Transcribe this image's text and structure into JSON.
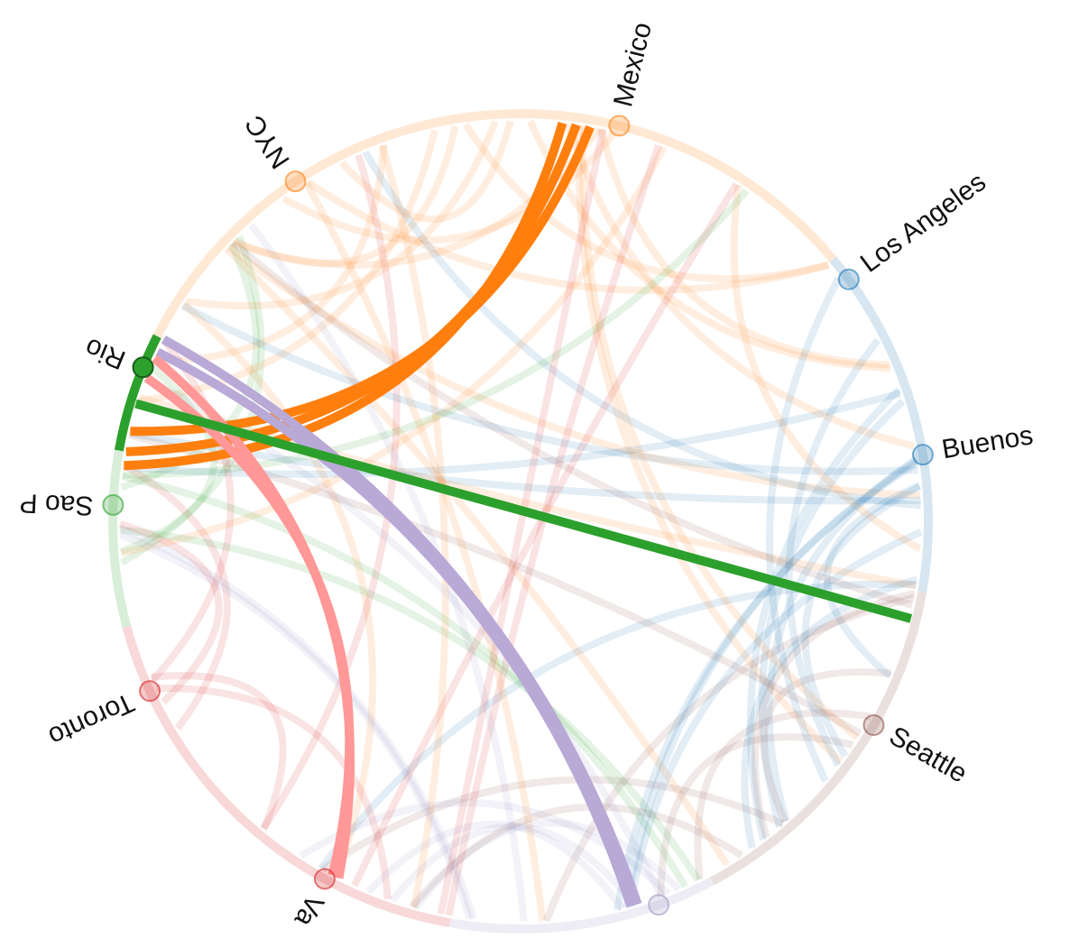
{
  "nodes": [
    {
      "label": "Mexico"
    },
    {
      "label": "NYC"
    },
    {
      "label": "Los Angeles"
    },
    {
      "label": "Buenos"
    },
    {
      "label": "Rio"
    },
    {
      "label": "Sao P"
    },
    {
      "label": "Toronto"
    },
    {
      "label": "Va"
    },
    {
      "label": "Seattle"
    }
  ]
}
